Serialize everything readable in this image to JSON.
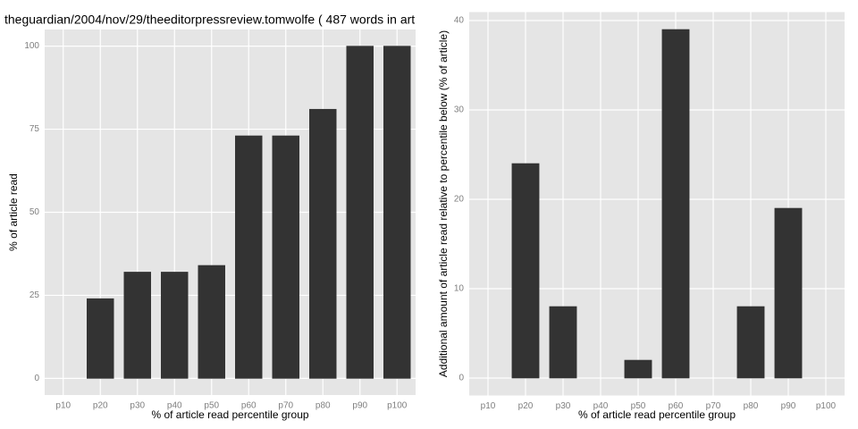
{
  "chart_data": [
    {
      "type": "bar",
      "title": "theguardian/2004/nov/29/theeditorpressreview.tomwolfe ( 487 words in art",
      "x_label": "% of article read percentile group",
      "y_label": "% of article read",
      "categories": [
        "p10",
        "p20",
        "p30",
        "p40",
        "p50",
        "p60",
        "p70",
        "p80",
        "p90",
        "p100"
      ],
      "values": [
        0,
        24,
        32,
        32,
        34,
        73,
        73,
        81,
        100,
        100
      ],
      "color": "#333333",
      "ylim": [
        -5,
        105
      ],
      "yticks": [
        0,
        25,
        50,
        75,
        100
      ],
      "grid": true
    },
    {
      "type": "bar",
      "x_label": "% of article read percentile group",
      "y_label": "Additional amount of article read relative to percentile below (% of article)",
      "categories": [
        "p10",
        "p20",
        "p30",
        "p40",
        "p50",
        "p60",
        "p70",
        "p80",
        "p90",
        "p100"
      ],
      "values": [
        0,
        24,
        8,
        0,
        2,
        39,
        0,
        8,
        19,
        0
      ],
      "color": "#333333",
      "ylim": [
        -1.95,
        40.95
      ],
      "yticks": [
        0,
        10,
        20,
        30,
        40
      ],
      "grid": true
    }
  ]
}
